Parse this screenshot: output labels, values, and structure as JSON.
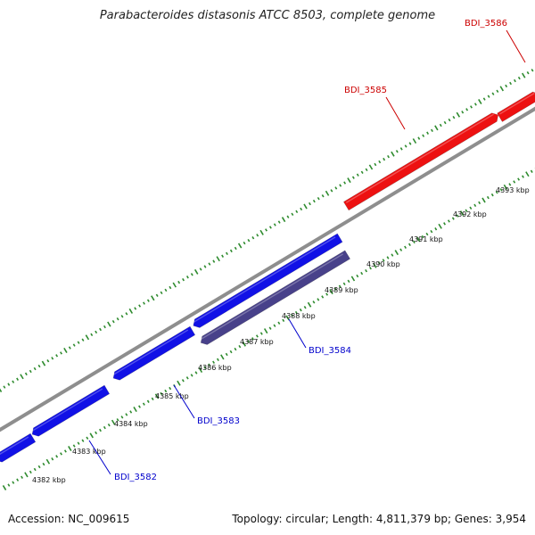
{
  "title": "Parabacteroides distasonis ATCC 8503, complete genome",
  "footer": {
    "accession": "Accession: NC_009615",
    "summary": "Topology: circular; Length: 4,811,379 bp; Genes: 3,954"
  },
  "colors": {
    "backbone": "#8e8e8e",
    "ticks": "#2e8b2e",
    "forward_gene": "#ed1111",
    "reverse_gene": "#1111e6",
    "reverse_gene_alt": "#48418a",
    "forward_label": "#cc0000",
    "reverse_label": "#0000cc"
  },
  "scale_labels": [
    "4382 kbp",
    "4383 kbp",
    "4384 kbp",
    "4385 kbp",
    "4386 kbp",
    "4387 kbp",
    "4388 kbp",
    "4389 kbp",
    "4390 kbp",
    "4391 kbp",
    "4392 kbp",
    "4393 kbp"
  ],
  "genes": [
    {
      "name": "BDI_3582",
      "strand": "reverse"
    },
    {
      "name": "BDI_3583",
      "strand": "reverse"
    },
    {
      "name": "BDI_3584",
      "strand": "reverse"
    },
    {
      "name": "BDI_3585",
      "strand": "forward"
    },
    {
      "name": "BDI_3586",
      "strand": "forward"
    }
  ]
}
